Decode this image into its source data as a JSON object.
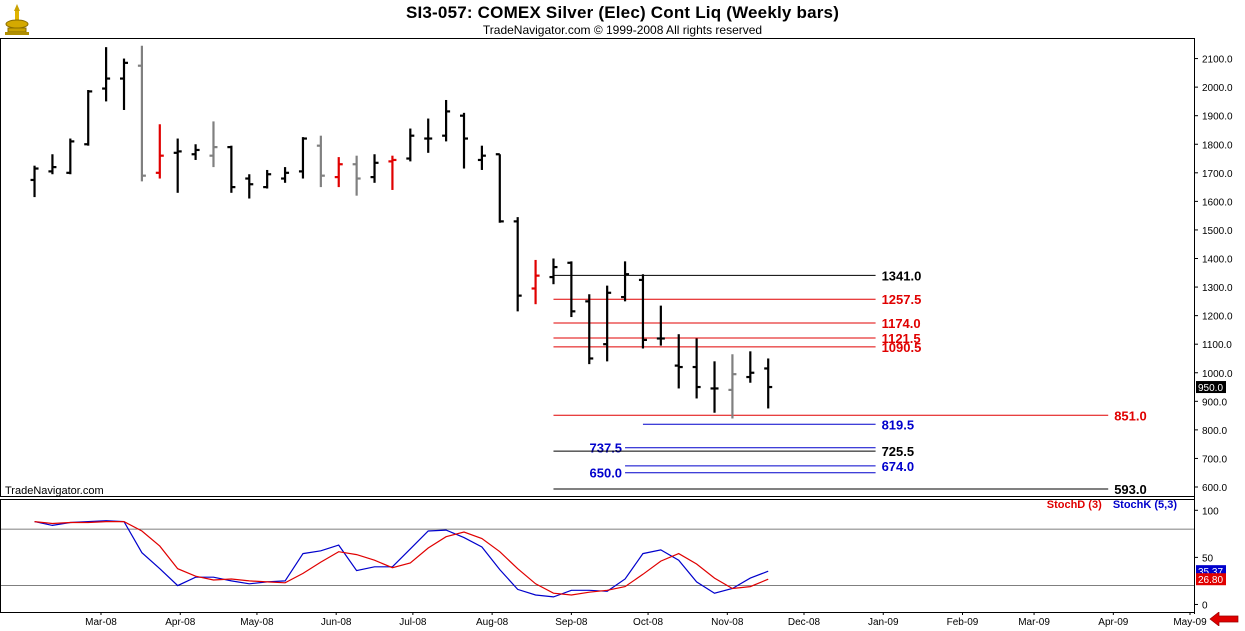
{
  "header": {
    "title": "SI3-057:  COMEX Silver (Elec) Cont Liq  (Weekly bars)",
    "subtitle": "TradeNavigator.com © 1999-2008 All rights reserved"
  },
  "watermark": "TradeNavigator.com",
  "price_axis": {
    "ticks": [
      "2100.0",
      "2000.0",
      "1900.0",
      "1800.0",
      "1700.0",
      "1600.0",
      "1500.0",
      "1400.0",
      "1300.0",
      "1200.0",
      "1100.0",
      "1000.0",
      "900.0",
      "800.0",
      "700.0",
      "600.0"
    ],
    "last_price": "950.0"
  },
  "stoch_axis": {
    "ticks": [
      "100",
      "50",
      "0"
    ],
    "stochk_value": "35.37",
    "stochd_value": "26.80"
  },
  "stoch_legend": {
    "stochd": "StochD (3)",
    "stochk": "StochK (5,3)"
  },
  "x_axis": {
    "labels": [
      "Mar-08",
      "Apr-08",
      "May-08",
      "Jun-08",
      "Jul-08",
      "Aug-08",
      "Sep-08",
      "Oct-08",
      "Nov-08",
      "Dec-08",
      "Jan-09",
      "Feb-09",
      "Mar-09",
      "Apr-09",
      "May-09"
    ]
  },
  "colors": {
    "black": "#000000",
    "red": "#e00000",
    "gray": "#808080",
    "blue": "#0000cc",
    "price_line": "#000000"
  },
  "chart_data": [
    {
      "type": "ohlc",
      "title": "SI3-057:  COMEX Silver (Elec) Cont Liq  (Weekly bars)",
      "ylim": [
        565,
        2165
      ],
      "bars": [
        {
          "x": "2008-02-04",
          "open": 1675,
          "high": 1725,
          "low": 1615,
          "close": 1715,
          "color": "black"
        },
        {
          "x": "2008-02-11",
          "open": 1705,
          "high": 1765,
          "low": 1695,
          "close": 1720,
          "color": "black"
        },
        {
          "x": "2008-02-18",
          "open": 1700,
          "high": 1820,
          "low": 1695,
          "close": 1810,
          "color": "black"
        },
        {
          "x": "2008-02-25",
          "open": 1800,
          "high": 1990,
          "low": 1795,
          "close": 1985,
          "color": "black"
        },
        {
          "x": "2008-03-03",
          "open": 1995,
          "high": 2140,
          "low": 1950,
          "close": 2030,
          "color": "black"
        },
        {
          "x": "2008-03-10",
          "open": 2030,
          "high": 2100,
          "low": 1920,
          "close": 2085,
          "color": "black"
        },
        {
          "x": "2008-03-17",
          "open": 2075,
          "high": 2145,
          "low": 1670,
          "close": 1690,
          "color": "gray"
        },
        {
          "x": "2008-03-24",
          "open": 1700,
          "high": 1870,
          "low": 1680,
          "close": 1760,
          "color": "red"
        },
        {
          "x": "2008-03-31",
          "open": 1770,
          "high": 1820,
          "low": 1630,
          "close": 1775,
          "color": "black"
        },
        {
          "x": "2008-04-07",
          "open": 1765,
          "high": 1800,
          "low": 1745,
          "close": 1780,
          "color": "black"
        },
        {
          "x": "2008-04-14",
          "open": 1760,
          "high": 1880,
          "low": 1720,
          "close": 1790,
          "color": "gray"
        },
        {
          "x": "2008-04-21",
          "open": 1790,
          "high": 1795,
          "low": 1630,
          "close": 1650,
          "color": "black"
        },
        {
          "x": "2008-04-28",
          "open": 1680,
          "high": 1695,
          "low": 1610,
          "close": 1660,
          "color": "black"
        },
        {
          "x": "2008-05-05",
          "open": 1650,
          "high": 1710,
          "low": 1645,
          "close": 1695,
          "color": "black"
        },
        {
          "x": "2008-05-12",
          "open": 1680,
          "high": 1720,
          "low": 1665,
          "close": 1700,
          "color": "black"
        },
        {
          "x": "2008-05-19",
          "open": 1705,
          "high": 1825,
          "low": 1680,
          "close": 1820,
          "color": "black"
        },
        {
          "x": "2008-05-26",
          "open": 1795,
          "high": 1830,
          "low": 1650,
          "close": 1690,
          "color": "gray"
        },
        {
          "x": "2008-06-02",
          "open": 1685,
          "high": 1755,
          "low": 1650,
          "close": 1730,
          "color": "red"
        },
        {
          "x": "2008-06-09",
          "open": 1730,
          "high": 1760,
          "low": 1620,
          "close": 1680,
          "color": "gray"
        },
        {
          "x": "2008-06-16",
          "open": 1685,
          "high": 1765,
          "low": 1665,
          "close": 1735,
          "color": "black"
        },
        {
          "x": "2008-06-23",
          "open": 1740,
          "high": 1760,
          "low": 1640,
          "close": 1745,
          "color": "red"
        },
        {
          "x": "2008-06-30",
          "open": 1750,
          "high": 1855,
          "low": 1740,
          "close": 1830,
          "color": "black"
        },
        {
          "x": "2008-07-07",
          "open": 1820,
          "high": 1890,
          "low": 1770,
          "close": 1820,
          "color": "black"
        },
        {
          "x": "2008-07-14",
          "open": 1830,
          "high": 1955,
          "low": 1810,
          "close": 1915,
          "color": "black"
        },
        {
          "x": "2008-07-21",
          "open": 1900,
          "high": 1910,
          "low": 1715,
          "close": 1820,
          "color": "black"
        },
        {
          "x": "2008-07-28",
          "open": 1745,
          "high": 1795,
          "low": 1710,
          "close": 1760,
          "color": "black"
        },
        {
          "x": "2008-08-04",
          "open": 1765,
          "high": 1765,
          "low": 1525,
          "close": 1530,
          "color": "black"
        },
        {
          "x": "2008-08-11",
          "open": 1530,
          "high": 1545,
          "low": 1215,
          "close": 1270,
          "color": "black"
        },
        {
          "x": "2008-08-18",
          "open": 1295,
          "high": 1395,
          "low": 1240,
          "close": 1340,
          "color": "red"
        },
        {
          "x": "2008-08-25",
          "open": 1335,
          "high": 1400,
          "low": 1310,
          "close": 1370,
          "color": "black"
        },
        {
          "x": "2008-09-01",
          "open": 1385,
          "high": 1390,
          "low": 1195,
          "close": 1215,
          "color": "black"
        },
        {
          "x": "2008-09-08",
          "open": 1250,
          "high": 1275,
          "low": 1030,
          "close": 1050,
          "color": "black"
        },
        {
          "x": "2008-09-15",
          "open": 1100,
          "high": 1305,
          "low": 1040,
          "close": 1280,
          "color": "black"
        },
        {
          "x": "2008-09-22",
          "open": 1265,
          "high": 1390,
          "low": 1250,
          "close": 1345,
          "color": "black"
        },
        {
          "x": "2008-09-29",
          "open": 1325,
          "high": 1345,
          "low": 1085,
          "close": 1115,
          "color": "black"
        },
        {
          "x": "2008-10-06",
          "open": 1120,
          "high": 1235,
          "low": 1095,
          "close": 1120,
          "color": "black"
        },
        {
          "x": "2008-10-13",
          "open": 1025,
          "high": 1135,
          "low": 945,
          "close": 1020,
          "color": "black"
        },
        {
          "x": "2008-10-20",
          "open": 1020,
          "high": 1120,
          "low": 910,
          "close": 950,
          "color": "black"
        },
        {
          "x": "2008-10-27",
          "open": 945,
          "high": 1040,
          "low": 860,
          "close": 945,
          "color": "black"
        },
        {
          "x": "2008-11-03",
          "open": 940,
          "high": 1065,
          "low": 840,
          "close": 995,
          "color": "gray"
        },
        {
          "x": "2008-11-10",
          "open": 985,
          "high": 1075,
          "low": 965,
          "close": 1000,
          "color": "black"
        },
        {
          "x": "2008-11-17",
          "open": 1015,
          "high": 1050,
          "low": 875,
          "close": 950,
          "color": "black"
        }
      ],
      "levels": [
        {
          "value": 1341.0,
          "label": "1341.0",
          "color": "black",
          "start": "2008-08-25",
          "end": "2008-12-29",
          "label_side": "right"
        },
        {
          "value": 1257.5,
          "label": "1257.5",
          "color": "red",
          "start": "2008-08-25",
          "end": "2008-12-29",
          "label_side": "right"
        },
        {
          "value": 1174.0,
          "label": "1174.0",
          "color": "red",
          "start": "2008-08-25",
          "end": "2008-12-29",
          "label_side": "right"
        },
        {
          "value": 1121.5,
          "label": "1121.5",
          "color": "red",
          "start": "2008-08-25",
          "end": "2008-12-29",
          "label_side": "right"
        },
        {
          "value": 1090.5,
          "label": "1090.5",
          "color": "red",
          "start": "2008-08-25",
          "end": "2008-12-29",
          "label_side": "right"
        },
        {
          "value": 851.0,
          "label": "851.0",
          "color": "red",
          "start": "2008-08-25",
          "end": "2009-03-30",
          "label_side": "right"
        },
        {
          "value": 819.5,
          "label": "819.5",
          "color": "blue",
          "start": "2008-09-29",
          "end": "2008-12-29",
          "label_side": "right"
        },
        {
          "value": 737.5,
          "label": "737.5",
          "color": "blue",
          "start": "2008-09-22",
          "end": "2008-12-29",
          "label_side": "left"
        },
        {
          "value": 725.5,
          "label": "725.5",
          "color": "black",
          "start": "2008-08-25",
          "end": "2008-12-29",
          "label_side": "right"
        },
        {
          "value": 674.0,
          "label": "674.0",
          "color": "blue",
          "start": "2008-09-22",
          "end": "2008-12-29",
          "label_side": "right"
        },
        {
          "value": 650.0,
          "label": "650.0",
          "color": "blue",
          "start": "2008-09-22",
          "end": "2008-12-29",
          "label_side": "left"
        },
        {
          "value": 593.0,
          "label": "593.0",
          "color": "black",
          "start": "2008-08-25",
          "end": "2009-03-30",
          "label_side": "right"
        }
      ]
    },
    {
      "type": "line",
      "title": "",
      "ylim": [
        -8,
        112
      ],
      "reference_lines": [
        80,
        20
      ],
      "series": [
        {
          "name": "StochK (5,3)",
          "color": "blue",
          "points": [
            {
              "x": "2008-02-04",
              "y": 88
            },
            {
              "x": "2008-02-11",
              "y": 84
            },
            {
              "x": "2008-02-18",
              "y": 87
            },
            {
              "x": "2008-02-25",
              "y": 88
            },
            {
              "x": "2008-03-03",
              "y": 89
            },
            {
              "x": "2008-03-10",
              "y": 88
            },
            {
              "x": "2008-03-17",
              "y": 55
            },
            {
              "x": "2008-03-24",
              "y": 38
            },
            {
              "x": "2008-03-31",
              "y": 20
            },
            {
              "x": "2008-04-07",
              "y": 29
            },
            {
              "x": "2008-04-14",
              "y": 29
            },
            {
              "x": "2008-04-21",
              "y": 25
            },
            {
              "x": "2008-04-28",
              "y": 22
            },
            {
              "x": "2008-05-05",
              "y": 24
            },
            {
              "x": "2008-05-12",
              "y": 25
            },
            {
              "x": "2008-05-19",
              "y": 54
            },
            {
              "x": "2008-05-26",
              "y": 57
            },
            {
              "x": "2008-06-02",
              "y": 63
            },
            {
              "x": "2008-06-09",
              "y": 36
            },
            {
              "x": "2008-06-16",
              "y": 40
            },
            {
              "x": "2008-06-23",
              "y": 40
            },
            {
              "x": "2008-06-30",
              "y": 59
            },
            {
              "x": "2008-07-07",
              "y": 78
            },
            {
              "x": "2008-07-14",
              "y": 79
            },
            {
              "x": "2008-07-21",
              "y": 71
            },
            {
              "x": "2008-07-28",
              "y": 61
            },
            {
              "x": "2008-08-04",
              "y": 37
            },
            {
              "x": "2008-08-11",
              "y": 16
            },
            {
              "x": "2008-08-18",
              "y": 10
            },
            {
              "x": "2008-08-25",
              "y": 8
            },
            {
              "x": "2008-09-01",
              "y": 15
            },
            {
              "x": "2008-09-08",
              "y": 15
            },
            {
              "x": "2008-09-15",
              "y": 14
            },
            {
              "x": "2008-09-22",
              "y": 27
            },
            {
              "x": "2008-09-29",
              "y": 54
            },
            {
              "x": "2008-10-06",
              "y": 58
            },
            {
              "x": "2008-10-13",
              "y": 47
            },
            {
              "x": "2008-10-20",
              "y": 24
            },
            {
              "x": "2008-10-27",
              "y": 12
            },
            {
              "x": "2008-11-03",
              "y": 17
            },
            {
              "x": "2008-11-10",
              "y": 28
            },
            {
              "x": "2008-11-17",
              "y": 35.37
            }
          ]
        },
        {
          "name": "StochD (3)",
          "color": "red",
          "points": [
            {
              "x": "2008-02-04",
              "y": 88
            },
            {
              "x": "2008-02-11",
              "y": 86
            },
            {
              "x": "2008-02-18",
              "y": 87
            },
            {
              "x": "2008-02-25",
              "y": 87
            },
            {
              "x": "2008-03-03",
              "y": 88
            },
            {
              "x": "2008-03-10",
              "y": 88
            },
            {
              "x": "2008-03-17",
              "y": 78
            },
            {
              "x": "2008-03-24",
              "y": 62
            },
            {
              "x": "2008-03-31",
              "y": 38
            },
            {
              "x": "2008-04-07",
              "y": 30
            },
            {
              "x": "2008-04-14",
              "y": 26
            },
            {
              "x": "2008-04-21",
              "y": 27
            },
            {
              "x": "2008-04-28",
              "y": 25
            },
            {
              "x": "2008-05-05",
              "y": 24
            },
            {
              "x": "2008-05-12",
              "y": 23
            },
            {
              "x": "2008-05-19",
              "y": 33
            },
            {
              "x": "2008-05-26",
              "y": 45
            },
            {
              "x": "2008-06-02",
              "y": 56
            },
            {
              "x": "2008-06-09",
              "y": 53
            },
            {
              "x": "2008-06-16",
              "y": 47
            },
            {
              "x": "2008-06-23",
              "y": 39
            },
            {
              "x": "2008-06-30",
              "y": 44
            },
            {
              "x": "2008-07-07",
              "y": 60
            },
            {
              "x": "2008-07-14",
              "y": 72
            },
            {
              "x": "2008-07-21",
              "y": 77
            },
            {
              "x": "2008-07-28",
              "y": 70
            },
            {
              "x": "2008-08-04",
              "y": 56
            },
            {
              "x": "2008-08-11",
              "y": 38
            },
            {
              "x": "2008-08-18",
              "y": 22
            },
            {
              "x": "2008-08-25",
              "y": 12
            },
            {
              "x": "2008-09-01",
              "y": 10
            },
            {
              "x": "2008-09-08",
              "y": 13
            },
            {
              "x": "2008-09-15",
              "y": 15
            },
            {
              "x": "2008-09-22",
              "y": 19
            },
            {
              "x": "2008-09-29",
              "y": 32
            },
            {
              "x": "2008-10-06",
              "y": 46
            },
            {
              "x": "2008-10-13",
              "y": 54
            },
            {
              "x": "2008-10-20",
              "y": 43
            },
            {
              "x": "2008-10-27",
              "y": 28
            },
            {
              "x": "2008-11-03",
              "y": 17
            },
            {
              "x": "2008-11-10",
              "y": 19
            },
            {
              "x": "2008-11-17",
              "y": 26.8
            }
          ]
        }
      ]
    }
  ]
}
